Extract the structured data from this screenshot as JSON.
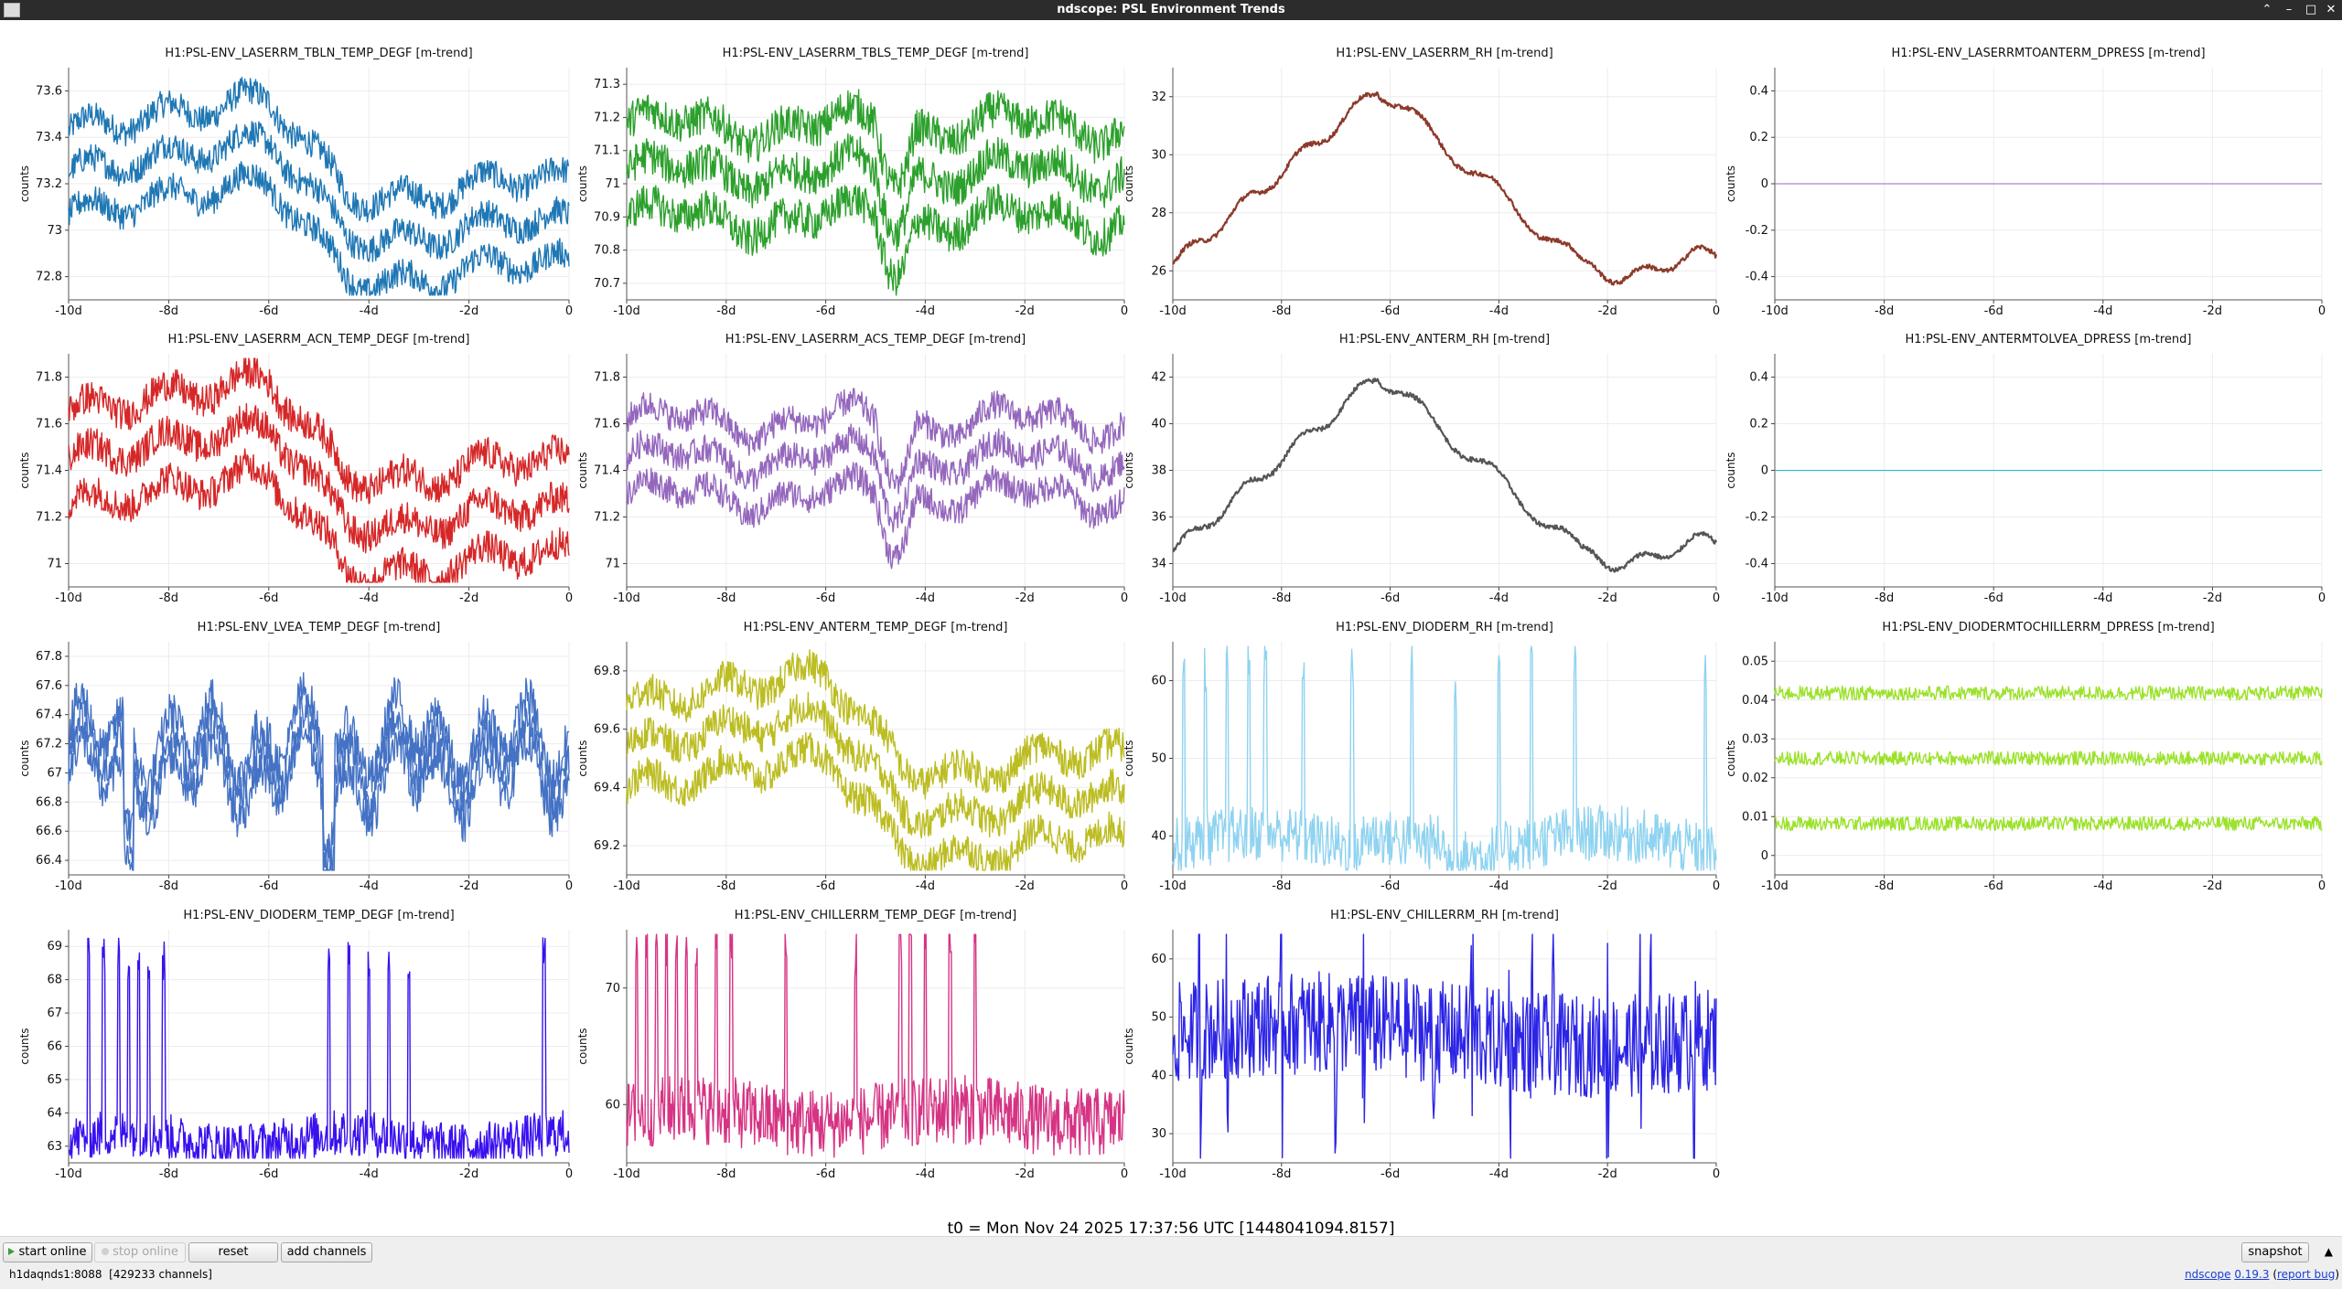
{
  "window": {
    "title": "ndscope: PSL Environment Trends",
    "controls": [
      "⌃",
      "–",
      "□",
      "✕"
    ]
  },
  "common": {
    "ylabel": "counts",
    "xticks": [
      "-10d",
      "-8d",
      "-6d",
      "-4d",
      "-2d",
      "0"
    ]
  },
  "plots": [
    {
      "title": "H1:PSL-ENV_LASERRM_TBLN_TEMP_DEGF [m-trend]",
      "color": "#1f77b4",
      "style": "band",
      "yticks": [
        "73.6",
        "73.4",
        "73.2",
        "73",
        "72.8"
      ],
      "trend": "a",
      "noise": 0.06,
      "offsets": [
        0.18,
        0,
        -0.18
      ]
    },
    {
      "title": "H1:PSL-ENV_LASERRM_TBLS_TEMP_DEGF [m-trend]",
      "color": "#2ca02c",
      "style": "band",
      "yticks": [
        "71.3",
        "71.2",
        "71.1",
        "71",
        "70.9",
        "70.8",
        "70.7"
      ],
      "trend": "b",
      "noise": 0.08,
      "offsets": [
        0.2,
        0,
        -0.2
      ]
    },
    {
      "title": "H1:PSL-ENV_LASERRM_RH [m-trend]",
      "color": "#8c3a2a",
      "style": "smooth",
      "yticks": [
        "32",
        "30",
        "28",
        "26"
      ],
      "trend": "rh",
      "noise": 0.01,
      "offsets": [
        0
      ]
    },
    {
      "title": "H1:PSL-ENV_LASERRMTOANTERM_DPRESS [m-trend]",
      "color": "#9467bd",
      "style": "flat",
      "yticks": [
        "0.4",
        "0.2",
        "0",
        "-0.2",
        "-0.4"
      ],
      "trend": "flat",
      "noise": 0,
      "offsets": [
        0
      ]
    },
    {
      "title": "H1:PSL-ENV_LASERRM_ACN_TEMP_DEGF [m-trend]",
      "color": "#d62728",
      "style": "band",
      "yticks": [
        "71.8",
        "71.6",
        "71.4",
        "71.2",
        "71"
      ],
      "trend": "a",
      "noise": 0.07,
      "offsets": [
        0.2,
        0,
        -0.2
      ]
    },
    {
      "title": "H1:PSL-ENV_LASERRM_ACS_TEMP_DEGF [m-trend]",
      "color": "#9467bd",
      "style": "band",
      "yticks": [
        "71.8",
        "71.6",
        "71.4",
        "71.2",
        "71"
      ],
      "trend": "b",
      "noise": 0.06,
      "offsets": [
        0.16,
        0,
        -0.16
      ]
    },
    {
      "title": "H1:PSL-ENV_ANTERM_RH [m-trend]",
      "color": "#555555",
      "style": "smooth",
      "yticks": [
        "42",
        "40",
        "38",
        "36",
        "34"
      ],
      "trend": "rh",
      "noise": 0.01,
      "offsets": [
        0
      ]
    },
    {
      "title": "H1:PSL-ENV_ANTERMTOLVEA_DPRESS [m-trend]",
      "color": "#17becf",
      "style": "flat",
      "yticks": [
        "0.4",
        "0.2",
        "0",
        "-0.2",
        "-0.4"
      ],
      "trend": "flat",
      "noise": 0,
      "offsets": [
        0
      ]
    },
    {
      "title": "H1:PSL-ENV_LVEA_TEMP_DEGF [m-trend]",
      "color": "#4472c4",
      "style": "band",
      "yticks": [
        "67.8",
        "67.6",
        "67.4",
        "67.2",
        "67",
        "66.8",
        "66.6",
        "66.4"
      ],
      "trend": "lvea",
      "noise": 0.09,
      "offsets": [
        0.09,
        0,
        -0.09
      ]
    },
    {
      "title": "H1:PSL-ENV_ANTERM_TEMP_DEGF [m-trend]",
      "color": "#bcbd22",
      "style": "band",
      "yticks": [
        "69.8",
        "69.6",
        "69.4",
        "69.2"
      ],
      "trend": "a",
      "noise": 0.07,
      "offsets": [
        0.18,
        0,
        -0.18
      ]
    },
    {
      "title": "H1:PSL-ENV_DIODERM_RH [m-trend]",
      "color": "#8fd3f0",
      "style": "spiky",
      "yticks": [
        "60",
        "50",
        "40"
      ],
      "trend": "diode",
      "noise": 0.12,
      "offsets": [
        0
      ]
    },
    {
      "title": "H1:PSL-ENV_DIODERMTOCHILLERRM_DPRESS [m-trend]",
      "color": "#9be22a",
      "style": "band",
      "yticks": [
        "0.05",
        "0.04",
        "0.03",
        "0.02",
        "0.01",
        "0"
      ],
      "trend": "flatish",
      "noise": 0.03,
      "offsets": [
        0.28,
        0,
        -0.28
      ]
    },
    {
      "title": "H1:PSL-ENV_DIODERM_TEMP_DEGF [m-trend]",
      "color": "#3a10f0",
      "style": "spiky",
      "yticks": [
        "69",
        "68",
        "67",
        "66",
        "65",
        "64",
        "63"
      ],
      "trend": "diodetemp",
      "noise": 0.1,
      "offsets": [
        0
      ]
    },
    {
      "title": "H1:PSL-ENV_CHILLERRM_TEMP_DEGF [m-trend]",
      "color": "#d63384",
      "style": "spiky",
      "yticks": [
        "70",
        "60"
      ],
      "trend": "chiller",
      "noise": 0.15,
      "offsets": [
        0
      ]
    },
    {
      "title": "H1:PSL-ENV_CHILLERRM_RH [m-trend]",
      "color": "#2b24e6",
      "style": "spiky",
      "yticks": [
        "60",
        "50",
        "40",
        "30"
      ],
      "trend": "chillerrh",
      "noise": 0.22,
      "offsets": [
        0
      ]
    }
  ],
  "t0_label": "t0 = Mon Nov 24 2025 17:37:56 UTC [1448041094.8157]",
  "buttons": {
    "start_online": "start online",
    "stop_online": "stop online",
    "reset": "reset",
    "add_channels": "add channels",
    "snapshot": "snapshot"
  },
  "status": {
    "server": "h1daqnds1:8088",
    "channels": "[429233 channels]",
    "app_name": "ndscope",
    "version": "0.19.3",
    "report_bug": "report bug"
  }
}
